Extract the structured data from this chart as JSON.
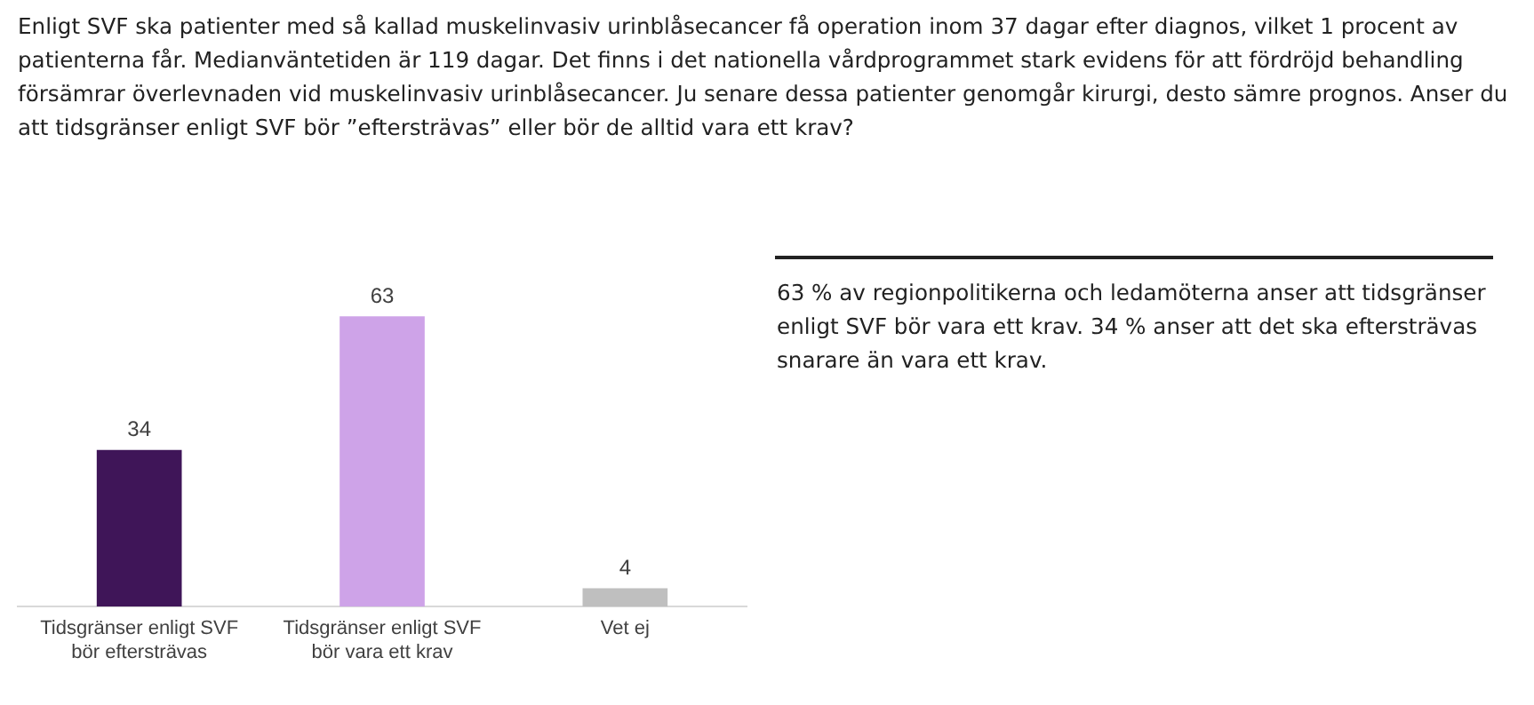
{
  "chart_data": {
    "type": "bar",
    "title": "Enligt SVF ska patienter med så kallad muskelinvasiv urinblåsecancer få operation inom 37 dagar efter diagnos, vilket 1 procent av patienterna får. Medianväntetiden är 119  dagar. Det finns i det nationella vårdprogrammet stark evidens för att fördröjd behandling försämrar överlevnaden vid muskelinvasiv urinblåsecancer.  Ju senare dessa patienter genomgår kirurgi, desto sämre prognos. Anser du att tidsgränser enligt SVF bör ”eftersträvas” eller bör de alltid vara ett krav?",
    "categories": [
      "Tidsgränser enligt SVF bör eftersträvas",
      "Tidsgränser enligt SVF bör vara ett krav",
      "Vet ej"
    ],
    "values": [
      34,
      63,
      4
    ],
    "colors": [
      "#3f1558",
      "#cea3e8",
      "#bfbfbf"
    ],
    "data_labels": true,
    "tick_labels": "x",
    "grid": false,
    "legend": false,
    "annotations": [
      "63 % av regionpolitikerna och ledamöterna anser att tidsgränser enligt SVF bör vara ett krav. 34 % anser att det ska eftersträvas snarare än vara ett krav."
    ]
  }
}
